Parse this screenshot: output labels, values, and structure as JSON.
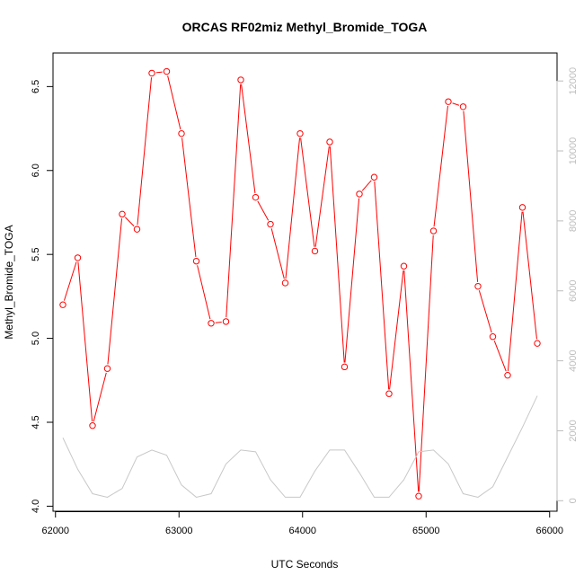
{
  "chart_data": {
    "type": "line",
    "title": "ORCAS RF02miz Methyl_Bromide_TOGA",
    "xlabel": "UTC Seconds",
    "ylabel": "Methyl_Bromide_TOGA",
    "xlim": [
      61980,
      66060
    ],
    "ylim": [
      3.97,
      6.7
    ],
    "y2lim": [
      -300,
      12800
    ],
    "x_ticks": [
      62000,
      63000,
      64000,
      65000,
      66000
    ],
    "x_tick_labels": [
      "62000",
      "63000",
      "64000",
      "65000",
      "66000"
    ],
    "y_ticks": [
      4.0,
      4.5,
      5.0,
      5.5,
      6.0,
      6.5
    ],
    "y_tick_labels": [
      "4.0",
      "4.5",
      "5.0",
      "5.5",
      "6.0",
      "6.5"
    ],
    "y2_ticks": [
      0,
      2000,
      4000,
      6000,
      8000,
      10000,
      12000
    ],
    "y2_tick_labels": [
      "0",
      "2000",
      "4000",
      "6000",
      "8000",
      "10000",
      "12000"
    ],
    "grid": false,
    "series": [
      {
        "axis": "left",
        "color": "#ff0000",
        "markers": "open-circle",
        "x": [
          62060,
          62180,
          62300,
          62420,
          62540,
          62660,
          62780,
          62900,
          63020,
          63140,
          63260,
          63380,
          63500,
          63620,
          63740,
          63860,
          63980,
          64100,
          64220,
          64340,
          64460,
          64580,
          64700,
          64820,
          64940,
          65060,
          65180,
          65300,
          65420,
          65540,
          65660,
          65780,
          65900
        ],
        "values": [
          5.2,
          5.48,
          4.48,
          4.82,
          5.74,
          5.65,
          6.58,
          6.59,
          6.22,
          5.46,
          5.09,
          5.1,
          6.54,
          5.84,
          5.68,
          5.33,
          6.22,
          5.52,
          6.17,
          4.83,
          5.86,
          5.96,
          4.67,
          5.43,
          4.06,
          5.64,
          6.41,
          6.38,
          5.31,
          5.01,
          4.78,
          5.78,
          4.97
        ]
      },
      {
        "axis": "right",
        "color": "#c8c8c8",
        "markers": "none",
        "x": [
          62060,
          62180,
          62300,
          62420,
          62540,
          62660,
          62780,
          62900,
          63020,
          63140,
          63260,
          63380,
          63500,
          63620,
          63740,
          63860,
          63980,
          64100,
          64220,
          64340,
          64460,
          64580,
          64700,
          64820,
          64940,
          65060,
          65180,
          65300,
          65420,
          65540,
          65660,
          65780,
          65900
        ],
        "values": [
          1800,
          900,
          200,
          100,
          350,
          1250,
          1450,
          1300,
          450,
          100,
          200,
          1050,
          1450,
          1400,
          600,
          100,
          100,
          850,
          1450,
          1450,
          800,
          100,
          100,
          600,
          1400,
          1450,
          1050,
          200,
          100,
          400,
          1250,
          2100,
          3000
        ]
      }
    ]
  }
}
